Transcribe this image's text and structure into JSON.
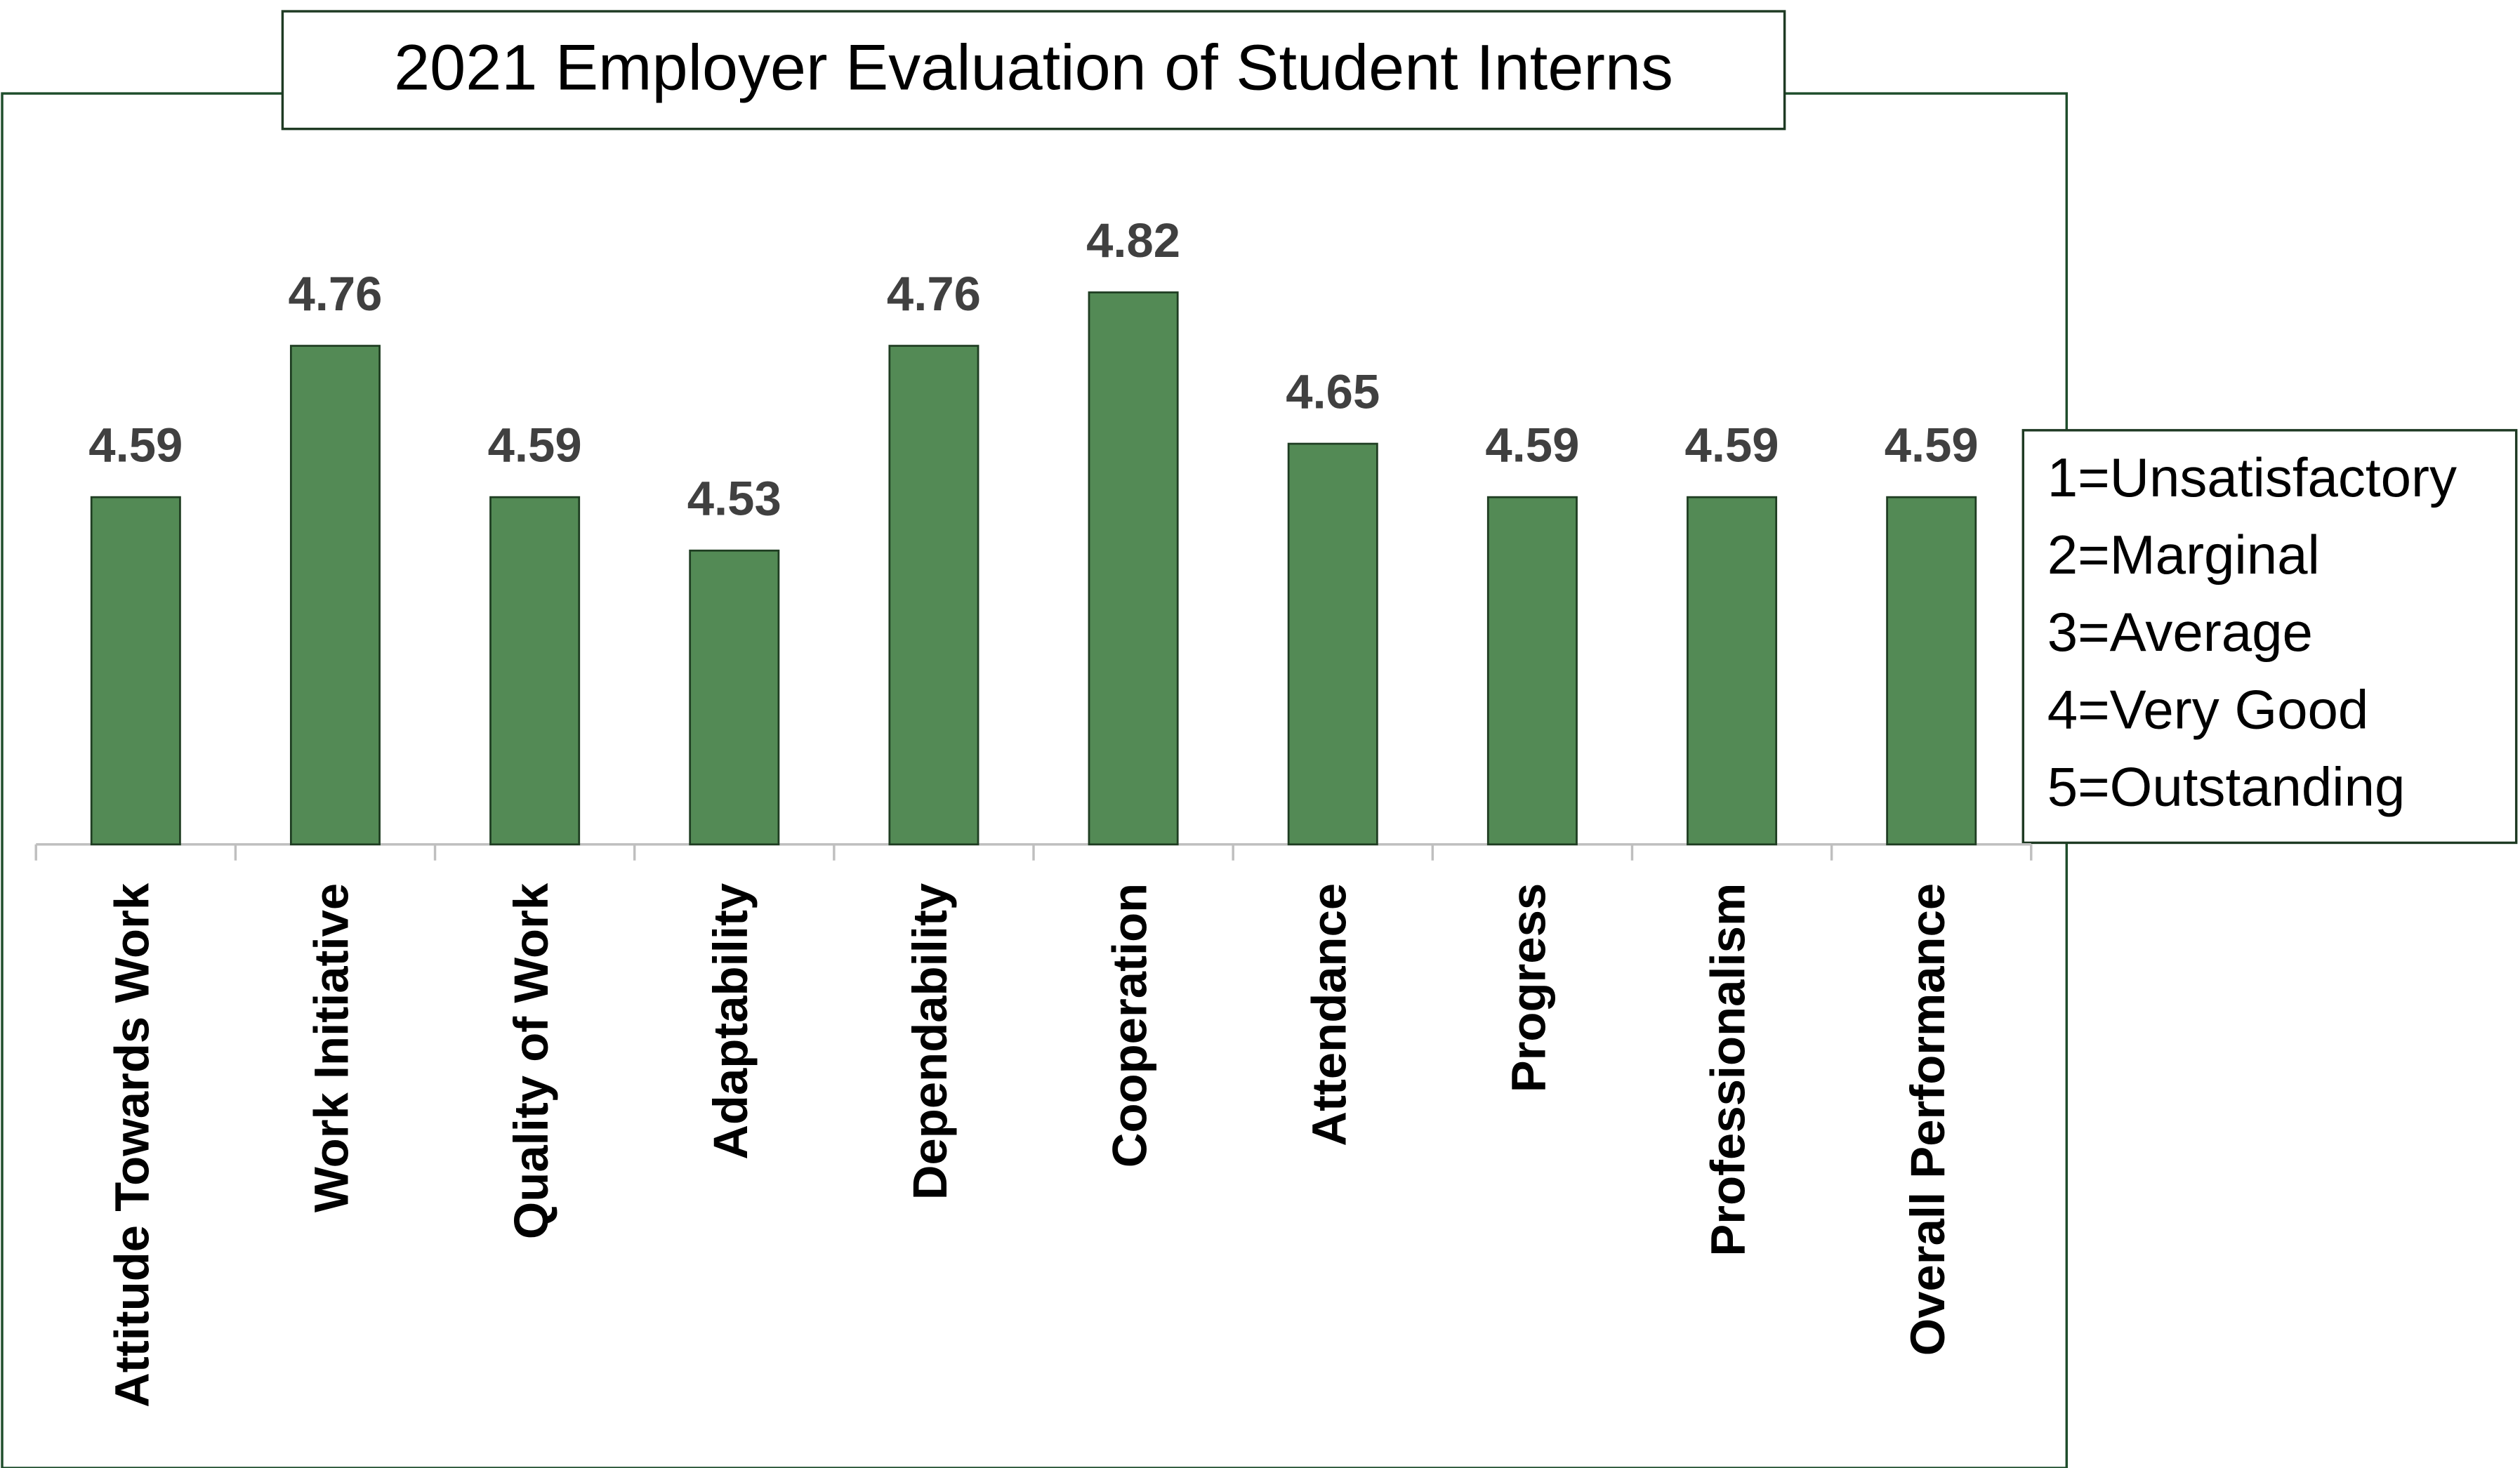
{
  "chart_data": {
    "type": "bar",
    "title": "2021 Employer Evaluation of Student Interns",
    "categories": [
      "Attitude Towards Work",
      "Work Initiative",
      "Quality of Work",
      "Adaptability",
      "Dependability",
      "Cooperation",
      "Attendance",
      "Progress",
      "Professionalism",
      "Overall Performance"
    ],
    "values": [
      4.59,
      4.76,
      4.59,
      4.53,
      4.76,
      4.82,
      4.65,
      4.59,
      4.59,
      4.59
    ],
    "color": "#538a55",
    "ylim": [
      4.2,
      5
    ],
    "annotations": [
      "1=Unsatisfactory",
      "2=Marginal",
      "3=Average",
      "4=Very Good",
      "5=Outstanding"
    ]
  }
}
